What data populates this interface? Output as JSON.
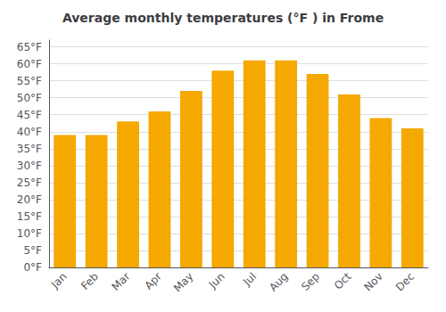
{
  "chart_data": {
    "type": "bar",
    "title": "Average monthly temperatures (°F ) in Frome",
    "categories": [
      "Jan",
      "Feb",
      "Mar",
      "Apr",
      "May",
      "Jun",
      "Jul",
      "Aug",
      "Sep",
      "Oct",
      "Nov",
      "Dec"
    ],
    "values": [
      39,
      39,
      43,
      46,
      52,
      58,
      61,
      61,
      57,
      51,
      44,
      41
    ],
    "color": "#F5A800",
    "ylim": [
      0,
      67
    ],
    "yticks": [
      {
        "value": 0,
        "label": "0°F"
      },
      {
        "value": 5,
        "label": "5°F"
      },
      {
        "value": 10,
        "label": "10°F"
      },
      {
        "value": 15,
        "label": "15°F"
      },
      {
        "value": 20,
        "label": "20°F"
      },
      {
        "value": 25,
        "label": "25°F"
      },
      {
        "value": 30,
        "label": "30°F"
      },
      {
        "value": 35,
        "label": "35°F"
      },
      {
        "value": 40,
        "label": "40°F"
      },
      {
        "value": 45,
        "label": "45°F"
      },
      {
        "value": 50,
        "label": "50°F"
      },
      {
        "value": 55,
        "label": "55°F"
      },
      {
        "value": 60,
        "label": "60°F"
      },
      {
        "value": 65,
        "label": "65°F"
      }
    ],
    "grid": true
  }
}
